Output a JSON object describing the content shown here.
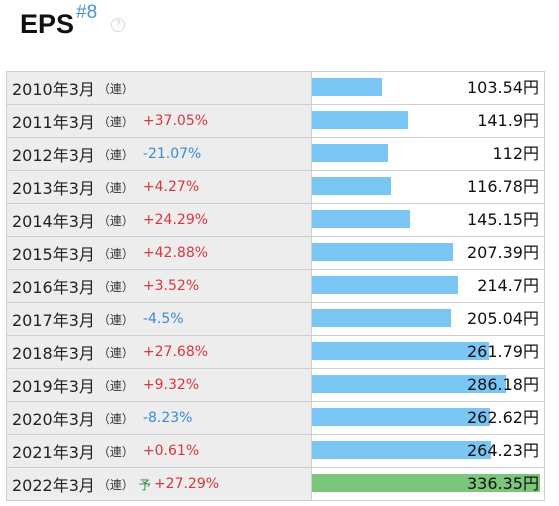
{
  "header": {
    "title": "EPS",
    "rank": "#8",
    "help_glyph": "?"
  },
  "rows": [
    {
      "period": "2010年3月",
      "type": "（連）",
      "change": "",
      "value": 103.54,
      "value_text": "103.54円",
      "forecast": false
    },
    {
      "period": "2011年3月",
      "type": "（連）",
      "change": "+37.05%",
      "value": 141.9,
      "value_text": "141.9円",
      "forecast": false
    },
    {
      "period": "2012年3月",
      "type": "（連）",
      "change": "-21.07%",
      "value": 112,
      "value_text": "112円",
      "forecast": false
    },
    {
      "period": "2013年3月",
      "type": "（連）",
      "change": "+4.27%",
      "value": 116.78,
      "value_text": "116.78円",
      "forecast": false
    },
    {
      "period": "2014年3月",
      "type": "（連）",
      "change": "+24.29%",
      "value": 145.15,
      "value_text": "145.15円",
      "forecast": false
    },
    {
      "period": "2015年3月",
      "type": "（連）",
      "change": "+42.88%",
      "value": 207.39,
      "value_text": "207.39円",
      "forecast": false
    },
    {
      "period": "2016年3月",
      "type": "（連）",
      "change": "+3.52%",
      "value": 214.7,
      "value_text": "214.7円",
      "forecast": false
    },
    {
      "period": "2017年3月",
      "type": "（連）",
      "change": "-4.5%",
      "value": 205.04,
      "value_text": "205.04円",
      "forecast": false
    },
    {
      "period": "2018年3月",
      "type": "（連）",
      "change": "+27.68%",
      "value": 261.79,
      "value_text": "261.79円",
      "forecast": false
    },
    {
      "period": "2019年3月",
      "type": "（連）",
      "change": "+9.32%",
      "value": 286.18,
      "value_text": "286.18円",
      "forecast": false
    },
    {
      "period": "2020年3月",
      "type": "（連）",
      "change": "-8.23%",
      "value": 262.62,
      "value_text": "262.62円",
      "forecast": false
    },
    {
      "period": "2021年3月",
      "type": "（連）",
      "change": "+0.61%",
      "value": 264.23,
      "value_text": "264.23円",
      "forecast": false
    },
    {
      "period": "2022年3月",
      "type": "（連）",
      "forecast_mark": "予",
      "change": "+27.29%",
      "value": 336.35,
      "value_text": "336.35円",
      "forecast": true
    }
  ],
  "colors": {
    "bar": "#79c6f5",
    "forecast_bar": "#7bc67b",
    "positive": "#d9363e",
    "negative": "#3b8ad8"
  }
}
